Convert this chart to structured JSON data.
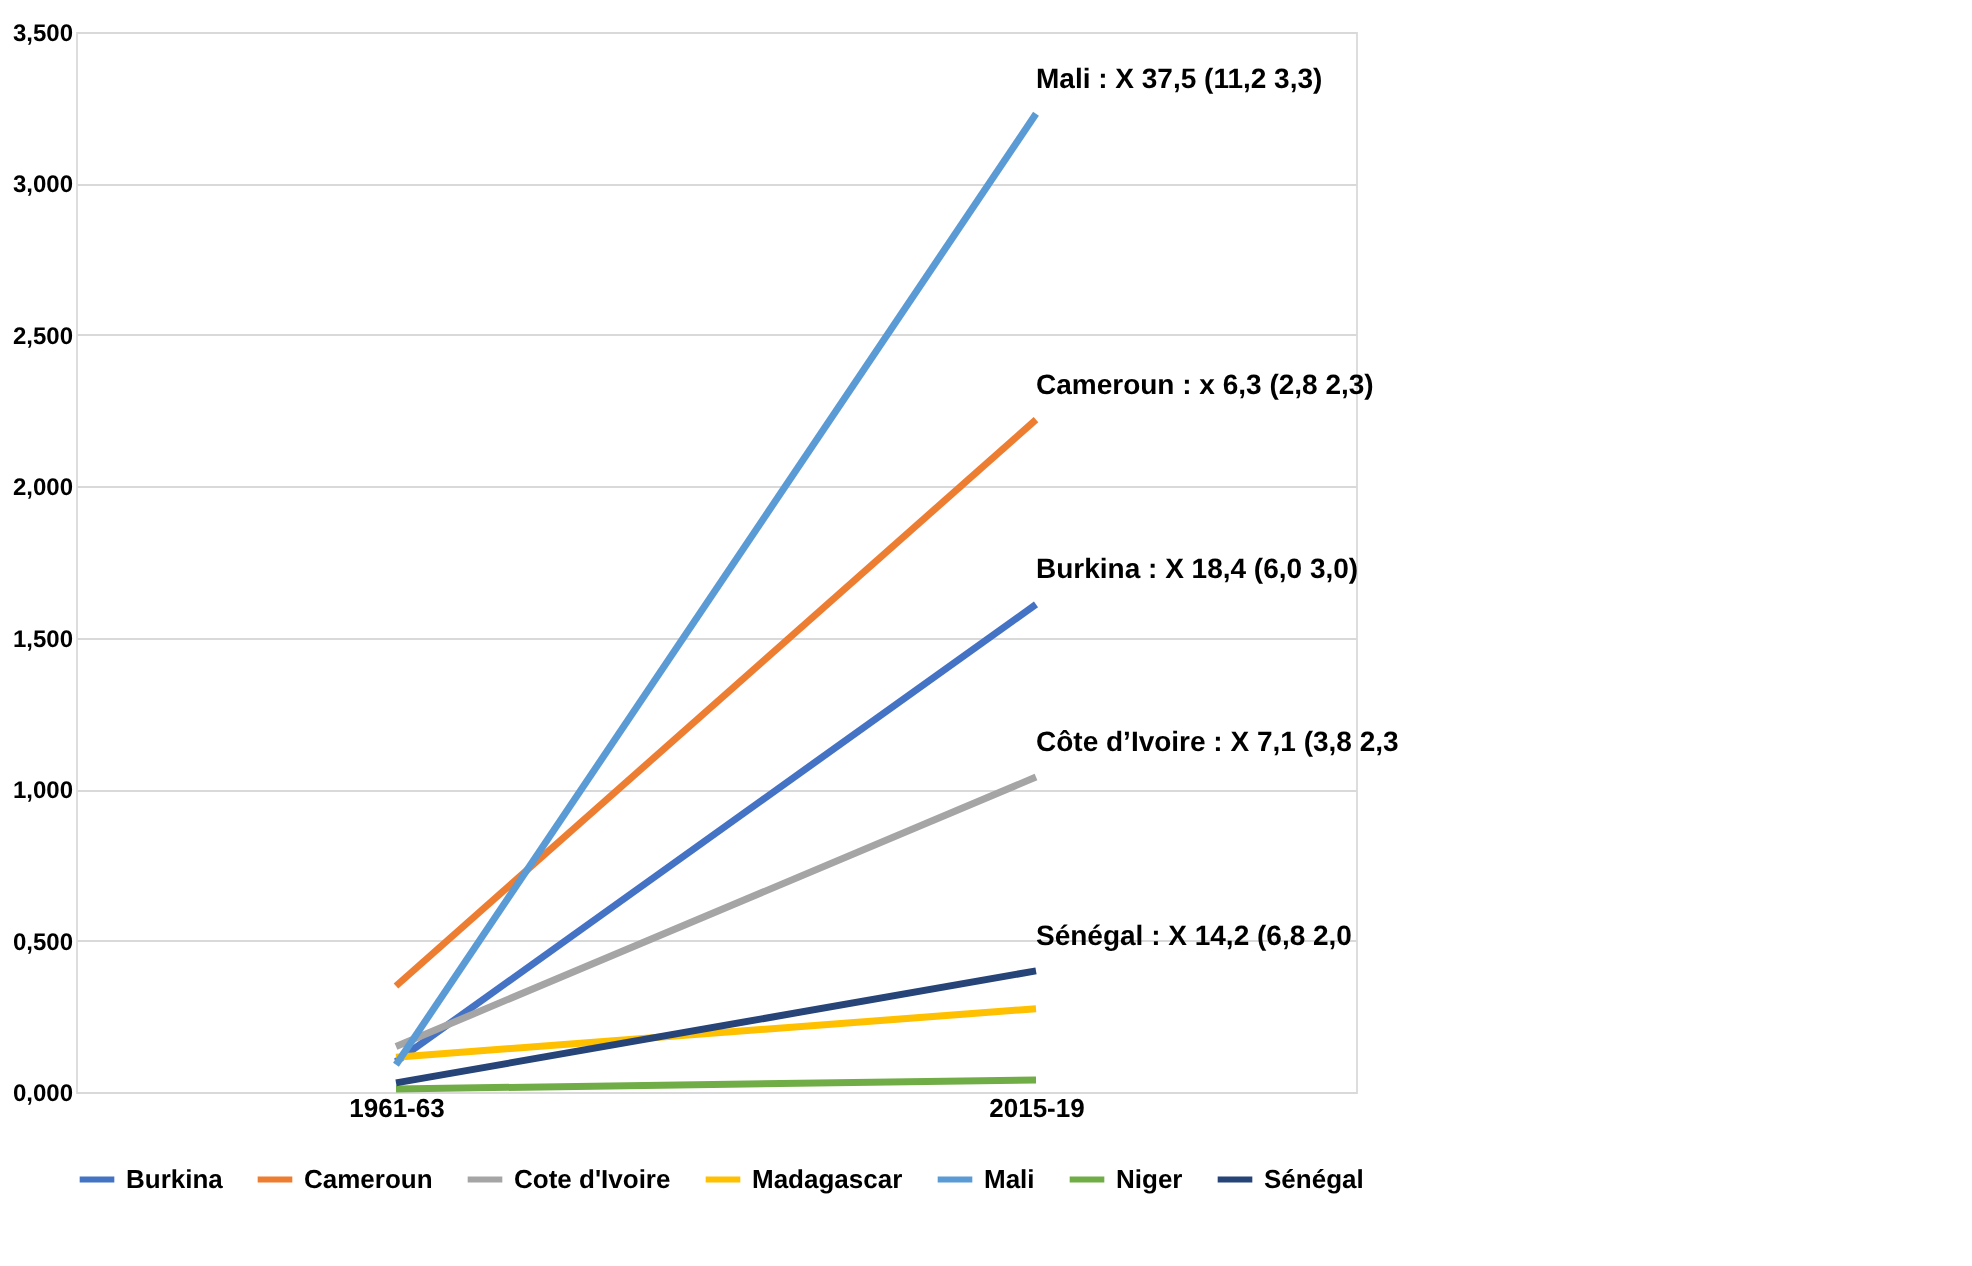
{
  "chart_data": {
    "type": "line",
    "categories": [
      "1961-63",
      "2015-19"
    ],
    "series": [
      {
        "name": "Burkina",
        "color": "#4472c4",
        "values": [
          0.1,
          1.61
        ]
      },
      {
        "name": "Cameroun",
        "color": "#ed7d31",
        "values": [
          0.35,
          2.22
        ]
      },
      {
        "name": "Cote d'Ivoire",
        "color": "#a5a5a5",
        "values": [
          0.15,
          1.04
        ]
      },
      {
        "name": "Madagascar",
        "color": "#ffc000",
        "values": [
          0.115,
          0.275
        ]
      },
      {
        "name": "Mali",
        "color": "#5b9bd5",
        "values": [
          0.09,
          3.23
        ]
      },
      {
        "name": "Niger",
        "color": "#70ad47",
        "values": [
          0.01,
          0.04
        ]
      },
      {
        "name": "Sénégal",
        "color": "#264478",
        "values": [
          0.03,
          0.4
        ]
      }
    ],
    "ylim": [
      0,
      3.5
    ],
    "yticks": [
      {
        "value": 0,
        "label": "0,000"
      },
      {
        "value": 0.5,
        "label": "0,500"
      },
      {
        "value": 1,
        "label": "1,000"
      },
      {
        "value": 1.5,
        "label": "1,500"
      },
      {
        "value": 2,
        "label": "2,000"
      },
      {
        "value": 2.5,
        "label": "2,500"
      },
      {
        "value": 3,
        "label": "3,000"
      },
      {
        "value": 3.5,
        "label": "3,500"
      }
    ],
    "annotations": [
      {
        "text": "Mali : X 37,5 (11,2  3,3)",
        "x": "2015-19",
        "y": 3.23
      },
      {
        "text": "Cameroun : x 6,3 (2,8 2,3)",
        "x": "2015-19",
        "y": 2.22
      },
      {
        "text": "Burkina : X 18,4 (6,0  3,0)",
        "x": "2015-19",
        "y": 1.61
      },
      {
        "text": "Côte d’Ivoire : X 7,1 (3,8  2,3",
        "x": "2015-19",
        "y": 1.04
      },
      {
        "text": "Sénégal :  X 14,2 (6,8  2,0",
        "x": "2015-19",
        "y": 0.4
      }
    ],
    "grid": "y",
    "legend": "bottom",
    "marker": "none",
    "line_style": "solid"
  }
}
